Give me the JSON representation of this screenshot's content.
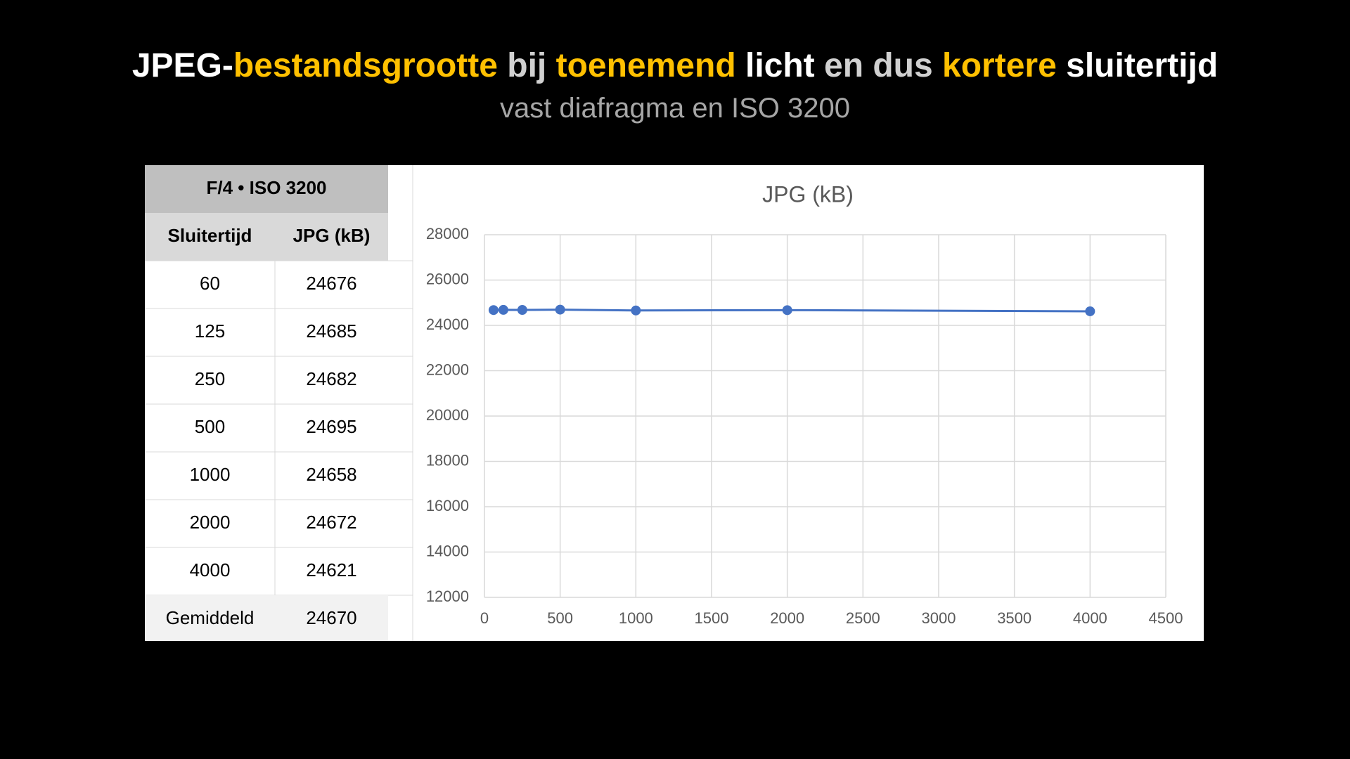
{
  "title": [
    {
      "text": "JPEG-",
      "color": "#ffffff"
    },
    {
      "text": "bestandsgrootte",
      "color": "#ffc000"
    },
    {
      "text": "bij",
      "color": "#d0d0d0"
    },
    {
      "text": "toenemend",
      "color": "#ffc000"
    },
    {
      "text": "licht",
      "color": "#ffffff"
    },
    {
      "text": "en dus",
      "color": "#d0d0d0"
    },
    {
      "text": "kortere",
      "color": "#ffc000"
    },
    {
      "text": "sluitertijd",
      "color": "#ffffff"
    }
  ],
  "subtitle": "vast diafragma en ISO 3200",
  "table": {
    "header": "F/4 • ISO 3200",
    "columns": [
      "Sluitertijd",
      "JPG (kB)"
    ],
    "rows": [
      [
        60,
        24676
      ],
      [
        125,
        24685
      ],
      [
        250,
        24682
      ],
      [
        500,
        24695
      ],
      [
        1000,
        24658
      ],
      [
        2000,
        24672
      ],
      [
        4000,
        24621
      ]
    ],
    "footer": [
      "Gemiddeld",
      24670
    ]
  },
  "chart_data": {
    "type": "scatter-line",
    "title": "JPG (kB)",
    "x": [
      60,
      125,
      250,
      500,
      1000,
      2000,
      4000
    ],
    "series": [
      {
        "name": "JPG (kB)",
        "color": "#4472c4",
        "values": [
          24676,
          24685,
          24682,
          24695,
          24658,
          24672,
          24621
        ]
      }
    ],
    "xlim": [
      0,
      4500
    ],
    "xticks": [
      0,
      500,
      1000,
      1500,
      2000,
      2500,
      3000,
      3500,
      4000,
      4500
    ],
    "ylim": [
      12000,
      28000
    ],
    "yticks": [
      12000,
      14000,
      16000,
      18000,
      20000,
      22000,
      24000,
      26000,
      28000
    ],
    "grid": true
  }
}
